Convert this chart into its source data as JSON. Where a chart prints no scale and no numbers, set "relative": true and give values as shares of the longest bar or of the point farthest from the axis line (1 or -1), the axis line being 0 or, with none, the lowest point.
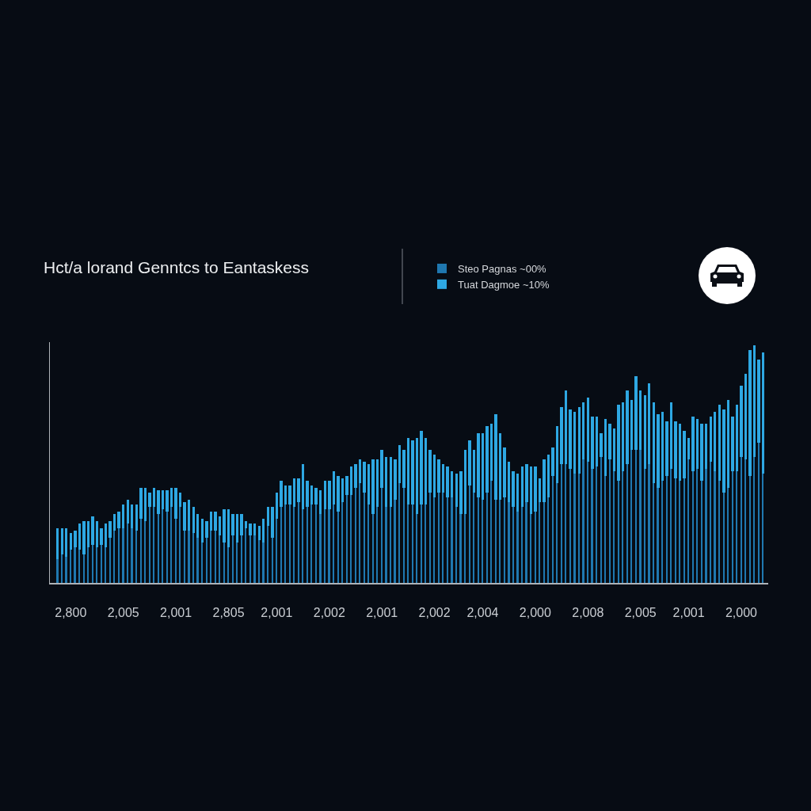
{
  "chart_data": {
    "type": "bar",
    "title": "Hct/a lorand Genntcs to Eantaskess",
    "relative": true,
    "stacked": true,
    "tick_labels": "x",
    "legend": "top",
    "categories": [
      null,
      null,
      null,
      "2,800",
      null,
      null,
      null,
      null,
      null,
      null,
      null,
      null,
      null,
      null,
      null,
      "2,005",
      null,
      null,
      null,
      null,
      null,
      null,
      null,
      null,
      null,
      null,
      null,
      "2,001",
      null,
      null,
      null,
      null,
      null,
      null,
      null,
      null,
      null,
      null,
      null,
      "2,805",
      null,
      null,
      null,
      null,
      null,
      null,
      null,
      null,
      null,
      null,
      "2,001",
      null,
      null,
      null,
      null,
      null,
      null,
      null,
      null,
      null,
      null,
      null,
      "2,002",
      null,
      null,
      null,
      null,
      null,
      null,
      null,
      null,
      null,
      null,
      null,
      "2,001",
      null,
      null,
      null,
      null,
      null,
      null,
      null,
      null,
      null,
      null,
      null,
      "2,002",
      null,
      null,
      null,
      null,
      null,
      null,
      null,
      null,
      null,
      null,
      "2,004",
      null,
      null,
      null,
      null,
      null,
      null,
      null,
      null,
      null,
      null,
      null,
      "2,000",
      null,
      null,
      null,
      null,
      null,
      null,
      null,
      null,
      null,
      null,
      null,
      "2,008",
      null,
      null,
      null,
      null,
      null,
      null,
      null,
      null,
      null,
      null,
      null,
      "2,005",
      null,
      null,
      null,
      null,
      null,
      null,
      null,
      null,
      null,
      null,
      "2,001",
      null,
      null,
      null,
      null,
      null,
      null,
      null,
      null,
      null,
      null,
      null,
      "2,000",
      null,
      null,
      null,
      null,
      null
    ],
    "series": [
      {
        "name": "Steo Pagnas ~00%",
        "color": "#1f78b0",
        "values": [
          0.1,
          0.12,
          0.11,
          0.14,
          0.15,
          0.14,
          0.12,
          0.15,
          0.16,
          0.15,
          0.16,
          0.15,
          0.19,
          0.22,
          0.23,
          0.23,
          0.25,
          0.23,
          0.22,
          0.27,
          0.26,
          0.32,
          0.32,
          0.29,
          0.31,
          0.3,
          0.32,
          0.27,
          0.32,
          0.22,
          0.22,
          0.21,
          0.19,
          0.17,
          0.19,
          0.22,
          0.22,
          0.2,
          0.17,
          0.15,
          0.2,
          0.17,
          0.2,
          0.23,
          0.2,
          0.2,
          0.18,
          0.17,
          0.24,
          0.19,
          0.27,
          0.32,
          0.33,
          0.33,
          0.32,
          0.34,
          0.31,
          0.32,
          0.33,
          0.33,
          0.29,
          0.31,
          0.31,
          0.33,
          0.3,
          0.34,
          0.37,
          0.37,
          0.4,
          0.42,
          0.38,
          0.33,
          0.29,
          0.32,
          0.4,
          0.32,
          0.32,
          0.35,
          0.42,
          0.4,
          0.33,
          0.33,
          0.29,
          0.33,
          0.33,
          0.38,
          0.36,
          0.38,
          0.38,
          0.36,
          0.36,
          0.32,
          0.29,
          0.29,
          0.41,
          0.38,
          0.36,
          0.35,
          0.38,
          0.43,
          0.35,
          0.35,
          0.36,
          0.34,
          0.32,
          0.3,
          0.32,
          0.34,
          0.29,
          0.3,
          0.34,
          0.34,
          0.36,
          0.45,
          0.42,
          0.5,
          0.5,
          0.48,
          0.46,
          0.46,
          0.52,
          0.51,
          0.48,
          0.49,
          0.53,
          0.45,
          0.52,
          0.47,
          0.43,
          0.47,
          0.5,
          0.56,
          0.56,
          0.56,
          0.48,
          0.5,
          0.42,
          0.4,
          0.43,
          0.45,
          0.48,
          0.44,
          0.43,
          0.44,
          0.52,
          0.47,
          0.48,
          0.43,
          0.48,
          0.51,
          0.47,
          0.43,
          0.38,
          0.4,
          0.47,
          0.47,
          0.53,
          0.52,
          0.45,
          0.53,
          0.59,
          0.46
        ]
      },
      {
        "name": "Tuat Dagmoe ~10%",
        "color": "#2ea8e3",
        "values": [
          0.13,
          0.11,
          0.12,
          0.07,
          0.07,
          0.11,
          0.14,
          0.11,
          0.12,
          0.11,
          0.07,
          0.1,
          0.07,
          0.07,
          0.07,
          0.1,
          0.1,
          0.1,
          0.11,
          0.13,
          0.14,
          0.06,
          0.08,
          0.1,
          0.08,
          0.09,
          0.08,
          0.13,
          0.06,
          0.12,
          0.13,
          0.11,
          0.1,
          0.1,
          0.07,
          0.08,
          0.08,
          0.08,
          0.14,
          0.16,
          0.09,
          0.12,
          0.09,
          0.03,
          0.05,
          0.05,
          0.06,
          0.1,
          0.08,
          0.13,
          0.11,
          0.11,
          0.08,
          0.08,
          0.12,
          0.1,
          0.19,
          0.11,
          0.08,
          0.07,
          0.1,
          0.12,
          0.12,
          0.14,
          0.15,
          0.1,
          0.08,
          0.12,
          0.1,
          0.1,
          0.13,
          0.17,
          0.23,
          0.2,
          0.16,
          0.21,
          0.21,
          0.17,
          0.16,
          0.16,
          0.28,
          0.27,
          0.32,
          0.31,
          0.28,
          0.18,
          0.18,
          0.14,
          0.12,
          0.13,
          0.11,
          0.14,
          0.18,
          0.27,
          0.19,
          0.18,
          0.27,
          0.28,
          0.28,
          0.24,
          0.36,
          0.28,
          0.21,
          0.17,
          0.15,
          0.16,
          0.17,
          0.16,
          0.2,
          0.19,
          0.1,
          0.18,
          0.18,
          0.12,
          0.24,
          0.24,
          0.31,
          0.25,
          0.26,
          0.28,
          0.24,
          0.27,
          0.22,
          0.21,
          0.1,
          0.24,
          0.15,
          0.18,
          0.32,
          0.29,
          0.31,
          0.21,
          0.31,
          0.25,
          0.31,
          0.34,
          0.34,
          0.31,
          0.29,
          0.23,
          0.28,
          0.24,
          0.24,
          0.2,
          0.09,
          0.23,
          0.21,
          0.24,
          0.19,
          0.19,
          0.25,
          0.32,
          0.35,
          0.37,
          0.23,
          0.28,
          0.3,
          0.36,
          0.53,
          0.47,
          0.35,
          0.51
        ]
      }
    ]
  }
}
